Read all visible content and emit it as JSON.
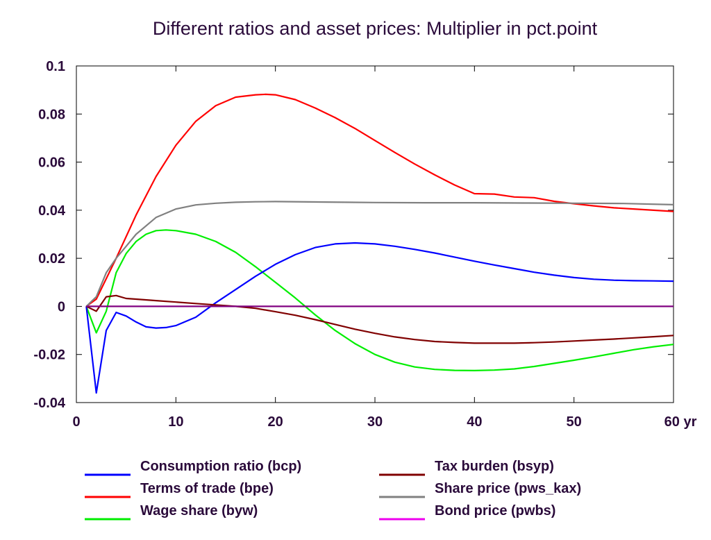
{
  "chart_data": {
    "type": "line",
    "title": "Different ratios and asset prices: Multiplier in pct.point",
    "x_unit": "yr",
    "xlim": [
      0,
      60
    ],
    "ylim": [
      -0.04,
      0.1
    ],
    "x_ticks": [
      0,
      10,
      20,
      30,
      40,
      50,
      60
    ],
    "x_tick_labels": [
      "0",
      "10",
      "20",
      "30",
      "40",
      "50",
      "60 yr"
    ],
    "y_ticks": [
      -0.04,
      -0.02,
      0,
      0.02,
      0.04,
      0.06,
      0.08,
      0.1
    ],
    "y_tick_labels": [
      "-0.04",
      "-0.02",
      "0",
      "0.02",
      "0.04",
      "0.06",
      "0.08",
      "0.1"
    ],
    "grid": false,
    "legend_position": "bottom",
    "series": [
      {
        "name": "Consumption ratio (bcp)",
        "color": "#0000ff",
        "x": [
          1,
          2,
          3,
          4,
          5,
          6,
          7,
          8,
          9,
          10,
          12,
          14,
          16,
          18,
          20,
          22,
          24,
          26,
          28,
          30,
          32,
          34,
          36,
          38,
          40,
          42,
          44,
          46,
          48,
          50,
          52,
          54,
          56,
          58,
          60
        ],
        "y": [
          0,
          -0.036,
          -0.01,
          -0.0025,
          -0.004,
          -0.0065,
          -0.0085,
          -0.009,
          -0.0088,
          -0.008,
          -0.0045,
          0.0015,
          0.007,
          0.0125,
          0.0175,
          0.0215,
          0.0245,
          0.026,
          0.0264,
          0.026,
          0.025,
          0.0237,
          0.0222,
          0.0205,
          0.0188,
          0.0172,
          0.0157,
          0.0142,
          0.013,
          0.012,
          0.0113,
          0.0109,
          0.0107,
          0.0106,
          0.0105
        ]
      },
      {
        "name": "Terms of trade (bpe)",
        "color": "#ff0000",
        "x": [
          1,
          2,
          4,
          6,
          8,
          10,
          12,
          14,
          16,
          18,
          19,
          20,
          22,
          24,
          26,
          28,
          30,
          32,
          34,
          36,
          38,
          40,
          42,
          44,
          46,
          48,
          50,
          52,
          54,
          56,
          58,
          60
        ],
        "y": [
          0,
          0.003,
          0.02,
          0.038,
          0.054,
          0.067,
          0.077,
          0.0835,
          0.087,
          0.088,
          0.0882,
          0.088,
          0.086,
          0.0825,
          0.0785,
          0.074,
          0.069,
          0.064,
          0.0592,
          0.0547,
          0.0505,
          0.0469,
          0.0467,
          0.0455,
          0.0452,
          0.0437,
          0.0427,
          0.0418,
          0.041,
          0.0405,
          0.04,
          0.0395
        ]
      },
      {
        "name": "Wage share (byw)",
        "color": "#00ee00",
        "x": [
          1,
          2,
          3,
          4,
          5,
          6,
          7,
          8,
          9,
          10,
          12,
          14,
          16,
          18,
          20,
          22,
          24,
          26,
          28,
          30,
          32,
          34,
          36,
          38,
          40,
          42,
          44,
          46,
          48,
          50,
          52,
          54,
          56,
          58,
          60
        ],
        "y": [
          0,
          -0.011,
          -0.002,
          0.014,
          0.022,
          0.027,
          0.03,
          0.0315,
          0.0318,
          0.0315,
          0.03,
          0.027,
          0.0225,
          0.0165,
          0.01,
          0.0035,
          -0.0035,
          -0.01,
          -0.0155,
          -0.02,
          -0.0232,
          -0.0252,
          -0.0262,
          -0.0266,
          -0.0267,
          -0.0265,
          -0.026,
          -0.025,
          -0.0237,
          -0.0224,
          -0.021,
          -0.0195,
          -0.018,
          -0.0168,
          -0.0158
        ]
      },
      {
        "name": "Tax burden (bsyp)",
        "color": "#800000",
        "x": [
          1,
          2,
          3,
          4,
          5,
          6,
          8,
          10,
          12,
          14,
          16,
          18,
          20,
          22,
          24,
          26,
          28,
          30,
          32,
          34,
          36,
          38,
          40,
          42,
          44,
          46,
          48,
          50,
          52,
          54,
          56,
          58,
          60
        ],
        "y": [
          0,
          -0.002,
          0.004,
          0.0045,
          0.0033,
          0.003,
          0.0024,
          0.0018,
          0.0012,
          0.0006,
          0,
          -0.0008,
          -0.0022,
          -0.0037,
          -0.0055,
          -0.0075,
          -0.0095,
          -0.0112,
          -0.0127,
          -0.0138,
          -0.0146,
          -0.015,
          -0.0153,
          -0.0153,
          -0.0153,
          -0.0151,
          -0.0148,
          -0.0144,
          -0.014,
          -0.0136,
          -0.0131,
          -0.0126,
          -0.0121
        ]
      },
      {
        "name": "Share price (pws_kax)",
        "color": "#808080",
        "x": [
          1,
          2,
          3,
          4,
          5,
          6,
          8,
          10,
          12,
          14,
          16,
          18,
          20,
          25,
          30,
          35,
          40,
          45,
          50,
          55,
          60
        ],
        "y": [
          0,
          0.004,
          0.014,
          0.02,
          0.025,
          0.03,
          0.037,
          0.0405,
          0.0422,
          0.0429,
          0.0433,
          0.0435,
          0.0436,
          0.0434,
          0.0432,
          0.0431,
          0.0431,
          0.043,
          0.0429,
          0.0428,
          0.0423
        ]
      },
      {
        "name": "Bond price (pwbs)",
        "color": "#ee00ee",
        "x": [
          1,
          60
        ],
        "y": [
          0,
          0
        ]
      }
    ]
  }
}
